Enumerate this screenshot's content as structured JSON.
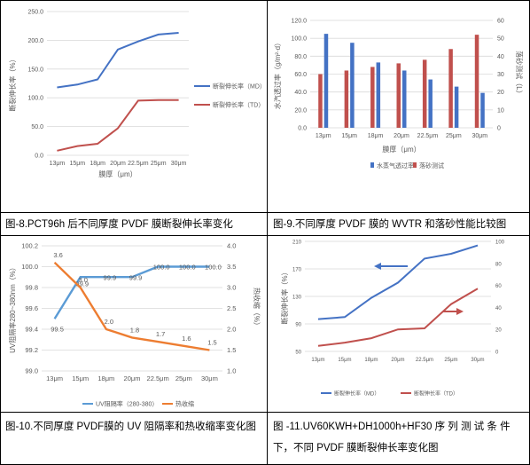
{
  "captions": {
    "c1": "图-8.PCT96h 后不同厚度 PVDF 膜断裂伸长率变化",
    "c2": "图-9.不同厚度 PVDF 膜的 WVTR 和落砂性能比较图",
    "c3": "图-10.不同厚度 PVDF膜的 UV 阻隔率和热收缩率变化图",
    "c4_line1": "图 -11.UV60KWH+DH1000h+HF30 序 列 测 试 条 件",
    "c4_line2": "下，不同 PVDF 膜断裂伸长率变化图"
  },
  "chart_data": [
    {
      "type": "line",
      "categories": [
        "13μm",
        "15μm",
        "18μm",
        "20μm",
        "22.5μm",
        "25μm",
        "30μm"
      ],
      "xlabel": "膜厚（μm）",
      "ylabel": "断裂伸长率（%）",
      "ylim": [
        0,
        250
      ],
      "yticks": [
        "0.0",
        "50.0",
        "100.0",
        "150.0",
        "200.0",
        "250.0"
      ],
      "grid": true,
      "legend_position": "right",
      "series": [
        {
          "name": "断裂伸长率（MD）",
          "color": "#4472C4",
          "values": [
            118,
            123,
            132,
            184,
            198,
            210,
            213
          ]
        },
        {
          "name": "断裂伸长率（TD）",
          "color": "#C0504D",
          "values": [
            8,
            16,
            20,
            47,
            95,
            96,
            96
          ]
        }
      ]
    },
    {
      "type": "bar",
      "categories": [
        "13μm",
        "15μm",
        "18μm",
        "20μm",
        "22.5μm",
        "25μm",
        "30μm"
      ],
      "xlabel": "膜厚（μm）",
      "ylabel": "水汽透过率（g/m²·d）",
      "ylabel_right": "落砂测试（L）",
      "ylim": [
        0,
        120
      ],
      "ylim_right": [
        0,
        60
      ],
      "yticks": [
        "0.0",
        "20.0",
        "40.0",
        "60.0",
        "80.0",
        "100.0",
        "120.0"
      ],
      "yticks_right": [
        "0",
        "10",
        "20",
        "30",
        "40",
        "50",
        "60"
      ],
      "grid": true,
      "legend_position": "bottom",
      "series": [
        {
          "name": "水蒸气透过率",
          "color": "#4472C4",
          "axis": "left",
          "values": [
            105,
            95,
            73,
            64,
            54,
            46,
            39
          ]
        },
        {
          "name": "落砂测试",
          "color": "#C0504D",
          "axis": "right",
          "values": [
            30,
            32,
            34,
            36,
            38,
            44,
            52
          ]
        }
      ]
    },
    {
      "type": "line",
      "categories": [
        "13μm",
        "15μm",
        "18μm",
        "20μm",
        "22.5μm",
        "25μm",
        "30μm"
      ],
      "ylabel": "UV阻隔率280~380nm（%）",
      "ylabel_right": "热收缩（%）",
      "ylim": [
        99.0,
        100.2
      ],
      "ylim_right": [
        1.0,
        4.0
      ],
      "yticks": [
        "99.0",
        "99.2",
        "99.4",
        "99.6",
        "99.8",
        "100.0",
        "100.2"
      ],
      "yticks_right": [
        "1.0",
        "1.5",
        "2.0",
        "2.5",
        "3.0",
        "3.5",
        "4.0"
      ],
      "grid": true,
      "legend_position": "bottom",
      "series": [
        {
          "name": "UV阻隔率（280-380）",
          "color": "#5B9BD5",
          "axis": "left",
          "values": [
            99.5,
            99.9,
            99.9,
            99.9,
            100.0,
            100.0,
            100.0
          ],
          "labels": [
            "99.5",
            "99.9",
            "99.9",
            "99.9",
            "100.0",
            "100.0",
            "100.0"
          ]
        },
        {
          "name": "热收缩",
          "color": "#ED7D31",
          "axis": "right",
          "values": [
            3.6,
            3.0,
            2.0,
            1.8,
            1.7,
            1.6,
            1.5
          ],
          "labels": [
            "3.6",
            "3.0",
            "2.0",
            "1.8",
            "1.7",
            "1.6",
            "1.5"
          ]
        }
      ]
    },
    {
      "type": "line",
      "categories": [
        "13μm",
        "15μm",
        "18μm",
        "20μm",
        "22.5μm",
        "25μm",
        "30μm"
      ],
      "ylabel": "断裂伸长率（%）",
      "ylim": [
        50,
        210
      ],
      "ylim_right": [
        0,
        100
      ],
      "yticks": [
        "50",
        "90",
        "130",
        "170",
        "210"
      ],
      "yticks_right": [
        "0",
        "20",
        "40",
        "60",
        "80",
        "100"
      ],
      "grid": true,
      "legend_position": "bottom",
      "series": [
        {
          "name": "断裂伸长率（MD）",
          "color": "#4472C4",
          "axis": "left",
          "values": [
            97,
            100,
            128,
            150,
            185,
            192,
            204
          ]
        },
        {
          "name": "断裂伸长率（TD）",
          "color": "#C0504D",
          "axis": "right",
          "values": [
            5,
            8,
            12,
            20,
            21,
            43,
            57
          ]
        }
      ]
    }
  ]
}
